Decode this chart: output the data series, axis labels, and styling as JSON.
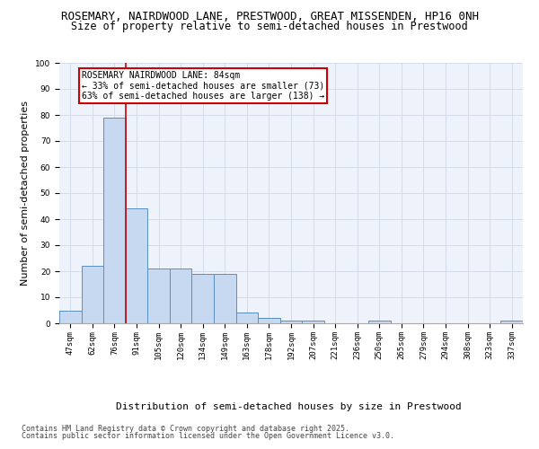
{
  "title_line1": "ROSEMARY, NAIRDWOOD LANE, PRESTWOOD, GREAT MISSENDEN, HP16 0NH",
  "title_line2": "Size of property relative to semi-detached houses in Prestwood",
  "xlabel": "Distribution of semi-detached houses by size in Prestwood",
  "ylabel": "Number of semi-detached properties",
  "categories": [
    "47sqm",
    "62sqm",
    "76sqm",
    "91sqm",
    "105sqm",
    "120sqm",
    "134sqm",
    "149sqm",
    "163sqm",
    "178sqm",
    "192sqm",
    "207sqm",
    "221sqm",
    "236sqm",
    "250sqm",
    "265sqm",
    "279sqm",
    "294sqm",
    "308sqm",
    "323sqm",
    "337sqm"
  ],
  "values": [
    5,
    22,
    79,
    44,
    21,
    21,
    19,
    19,
    4,
    2,
    1,
    1,
    0,
    0,
    1,
    0,
    0,
    0,
    0,
    0,
    1
  ],
  "bar_color": "#c6d9f0",
  "bar_edge_color": "#5a8fc2",
  "red_line_color": "#cc0000",
  "annotation_title": "ROSEMARY NAIRDWOOD LANE: 84sqm",
  "annotation_line2": "← 33% of semi-detached houses are smaller (73)",
  "annotation_line3": "63% of semi-detached houses are larger (138) →",
  "annotation_box_color": "#ffffff",
  "annotation_box_edge": "#cc0000",
  "ylim": [
    0,
    100
  ],
  "yticks": [
    0,
    10,
    20,
    30,
    40,
    50,
    60,
    70,
    80,
    90,
    100
  ],
  "grid_color": "#d0d8e8",
  "background_color": "#eef2fa",
  "footnote1": "Contains HM Land Registry data © Crown copyright and database right 2025.",
  "footnote2": "Contains public sector information licensed under the Open Government Licence v3.0.",
  "title_fontsize": 9,
  "subtitle_fontsize": 8.5,
  "axis_label_fontsize": 8,
  "tick_fontsize": 6.5,
  "annotation_fontsize": 7,
  "footnote_fontsize": 6
}
